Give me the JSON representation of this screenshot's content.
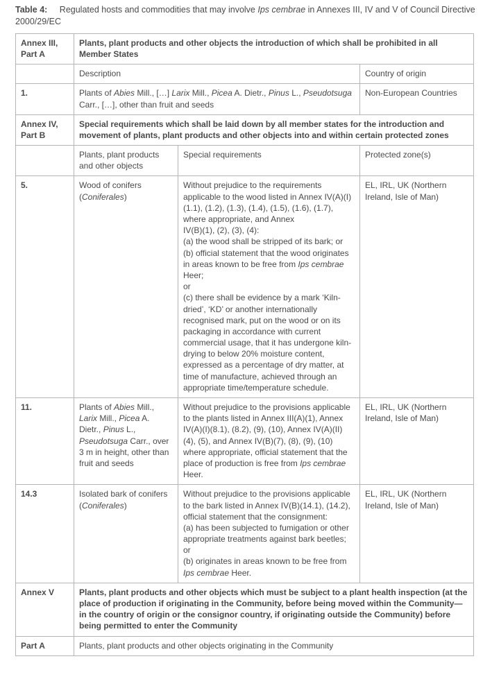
{
  "caption": {
    "label": "Table 4:",
    "text_before": "Regulated hosts and commodities that may involve ",
    "italic": "Ips cembrae",
    "text_after": " in Annexes III, IV and V of Council Directive 2000/29/EC"
  },
  "table": {
    "border_color": "#b5b5b5",
    "text_color": "#4a4a4a",
    "font_size": 12
  },
  "annex3": {
    "left": "Annex III, Part A",
    "title": "Plants, plant products and other objects the introduction of which shall be prohibited in all Member States",
    "h_desc": "Description",
    "h_origin": "Country of origin",
    "row1": {
      "num": "1.",
      "desc_a": "Plants of ",
      "desc_i1": "Abies",
      "desc_b": " Mill., […] ",
      "desc_i2": "Larix",
      "desc_c": " Mill., ",
      "desc_i3": "Picea",
      "desc_d": " A. Dietr., ",
      "desc_i4": "Pinus",
      "desc_e": " L., ",
      "desc_i5": "Pseudotsuga",
      "desc_f": " Carr., […], other than fruit and seeds",
      "origin": "Non-European Countries"
    }
  },
  "annex4": {
    "left": "Annex IV, Part B",
    "title": "Special requirements which shall be laid down by all member states for the introduction and movement of plants, plant products and other objects into and within certain protected zones",
    "h1": "Plants, plant products and other objects",
    "h2": "Special requirements",
    "h3": "Protected zone(s)",
    "r5": {
      "num": "5.",
      "c1_a": "Wood of conifers (",
      "c1_i": "Coniferales",
      "c1_b": ")",
      "c2_a": "Without prejudice to the requirements applicable to the wood listed in Annex IV(A)(I)(1.1), (1.2), (1.3), (1.4), (1.5), (1.6), (1.7), where appropriate, and Annex",
      "c2_b": "IV(B)(1), (2), (3), (4):",
      "c2_c": "(a) the wood shall be stripped of its bark; or",
      "c2_d": "(b) official statement that the wood originates in areas known to be free from ",
      "c2_d_i": "Ips cembrae",
      "c2_d2": " Heer;",
      "c2_e": "or",
      "c2_f": "(c) there shall be evidence by a mark ‘Kiln-dried’, ‘KD’ or another internationally recognised mark, put on the wood or on its packaging in accordance with current commercial usage, that it has undergone kiln-drying to below 20% moisture content, expressed as a percentage of dry matter, at time of manufacture, achieved through an appropriate time/temperature schedule.",
      "c3": "EL, IRL, UK (Northern Ireland, Isle of Man)"
    },
    "r11": {
      "num": "11.",
      "c1_a": "Plants of ",
      "c1_i1": "Abies",
      "c1_b": " Mill., ",
      "c1_i2": "Larix",
      "c1_c": " Mill., ",
      "c1_i3": "Picea",
      "c1_d": " A. Dietr., ",
      "c1_i4": "Pinus",
      "c1_e": " L., ",
      "c1_i5": "Pseudotsuga",
      "c1_f": " Carr., over 3 m in height, other than fruit and seeds",
      "c2_a": "Without prejudice to the provisions applicable to the plants listed in Annex III(A)(1), Annex IV(A)(I)(8.1), (8.2), (9), (10), Annex IV(A)(II)(4), (5), and Annex IV(B)(7), (8), (9), (10) where appropriate, official statement that the place of production is free from ",
      "c2_i": "Ips cembrae",
      "c2_b": " Heer.",
      "c3": "EL, IRL, UK (Northern Ireland, Isle of Man)"
    },
    "r143": {
      "num": "14.3",
      "c1_a": "Isolated bark of conifers (",
      "c1_i": "Coniferales",
      "c1_b": ")",
      "c2_a": "Without prejudice to the provisions applicable to the bark listed in Annex IV(B)(14.1), (14.2), official statement that the consignment:",
      "c2_b": "(a) has been subjected to fumigation or other appropriate treatments against bark beetles;",
      "c2_c": "or",
      "c2_d": "(b) originates in areas known to be free from ",
      "c2_d_i": "Ips cembrae",
      "c2_d2": " Heer.",
      "c3": "EL, IRL, UK (Northern Ireland, Isle of Man)"
    }
  },
  "annex5": {
    "left": "Annex V",
    "title": "Plants, plant products and other objects which must be subject to a plant health inspection (at the place of production if originating in the Community, before being moved within the Community—in the country of origin or the consignor country, if originating outside the Community) before being permitted to enter the Community",
    "partA_left": "Part A",
    "partA_text": "Plants, plant products and other objects originating in the Community"
  }
}
